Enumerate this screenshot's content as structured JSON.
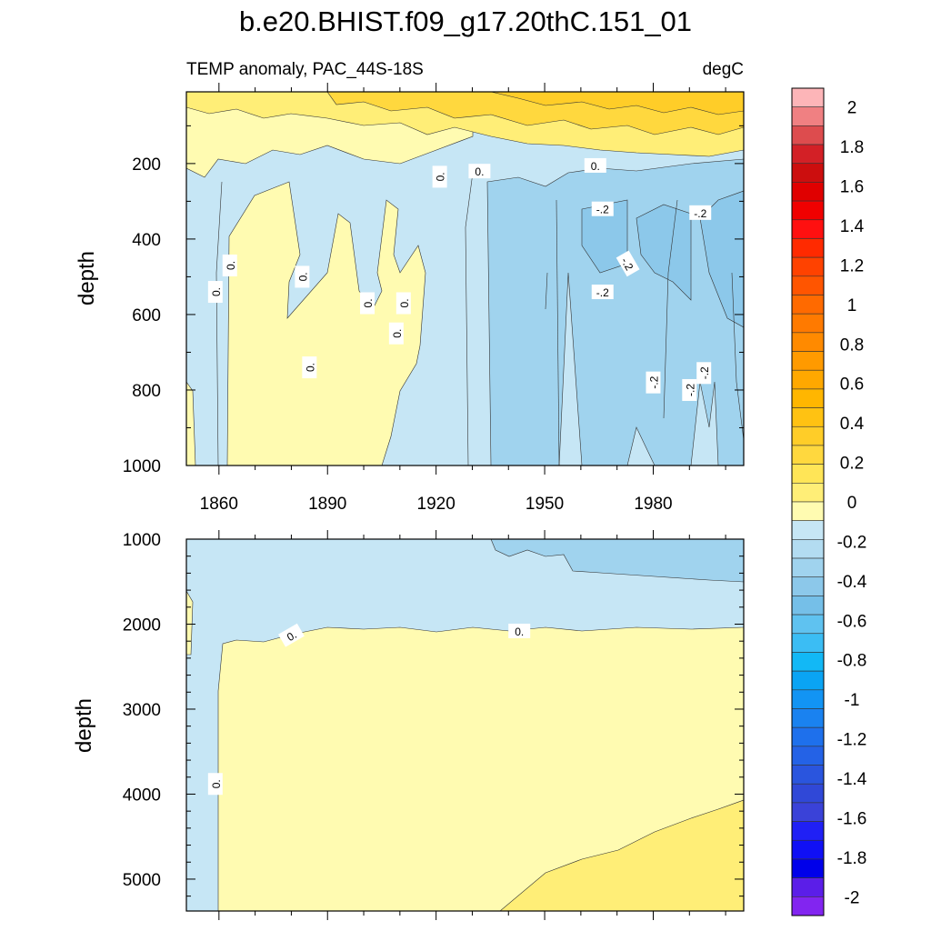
{
  "chart_data": [
    {
      "type": "heatmap",
      "title": "b.e20.BHIST.f09_g17.20thC.151_01",
      "left_string": "TEMP anomaly, PAC_44S-18S",
      "right_string": "degC",
      "ylabel": "depth",
      "xlim": [
        1851,
        2005
      ],
      "ylim": [
        1000,
        10
      ],
      "x_ticks": [
        "1860",
        "1890",
        "1920",
        "1950",
        "1980"
      ],
      "y_ticks": [
        "200",
        "400",
        "600",
        "800",
        "1000"
      ],
      "contour_labels": [
        "0.",
        "0.",
        "0.",
        "0.",
        "0.",
        "0.",
        "0.",
        "0.",
        "0.",
        "0.",
        "-.2",
        "-.2",
        "-.2",
        "-.2",
        "-.2",
        "-.2",
        "-.2"
      ]
    },
    {
      "type": "heatmap",
      "ylabel": "depth",
      "xlim": [
        1851,
        2005
      ],
      "ylim": [
        5375,
        1000
      ],
      "y_ticks": [
        "1000",
        "2000",
        "3000",
        "4000",
        "5000"
      ],
      "contour_labels": [
        "0.",
        "0.",
        "0."
      ]
    }
  ],
  "colorbar": {
    "levels": [
      -2.2,
      -2.1,
      -2.0,
      -1.9,
      -1.8,
      -1.7,
      -1.6,
      -1.5,
      -1.4,
      -1.3,
      -1.2,
      -1.1,
      -1.0,
      -0.9,
      -0.8,
      -0.7,
      -0.6,
      -0.5,
      -0.4,
      -0.3,
      -0.2,
      -0.1,
      0.0,
      0.1,
      0.2,
      0.3,
      0.4,
      0.5,
      0.6,
      0.7,
      0.8,
      0.9,
      1.0,
      1.1,
      1.2,
      1.3,
      1.4,
      1.5,
      1.6,
      1.7,
      1.8,
      1.9,
      2.0,
      2.1,
      2.2
    ],
    "labels": [
      "2",
      "1.8",
      "1.6",
      "1.4",
      "1.2",
      "1",
      "0.8",
      "0.6",
      "0.4",
      "0.2",
      "0",
      "-0.2",
      "-0.4",
      "-0.6",
      "-0.8",
      "-1",
      "-1.2",
      "-1.4",
      "-1.6",
      "-1.8",
      "-2"
    ],
    "colors": [
      "#fdb5b8",
      "#f08082",
      "#dd4c4e",
      "#d32026",
      "#cc0e0e",
      "#e00000",
      "#f00000",
      "#ff1010",
      "#ff2a00",
      "#ff4200",
      "#ff5500",
      "#ff6a00",
      "#ff7a00",
      "#ff8a00",
      "#ff9a00",
      "#ffa800",
      "#ffb600",
      "#ffc212",
      "#ffcd28",
      "#ffd83e",
      "#ffe557",
      "#ffee77",
      "#fffbb1",
      "#c6e6f5",
      "#b3dcf1",
      "#a0d3ee",
      "#8cc8ea",
      "#75bfe8",
      "#5fc2f0",
      "#3bbdf4",
      "#12b8f6",
      "#0aa4f4",
      "#1294f4",
      "#1a82f0",
      "#1e70ec",
      "#2462e6",
      "#2a55de",
      "#3048d7",
      "#3a42d8",
      "#2020f5",
      "#1010f5",
      "#0000ea",
      "#5b1ee8",
      "#8225f0"
    ]
  }
}
